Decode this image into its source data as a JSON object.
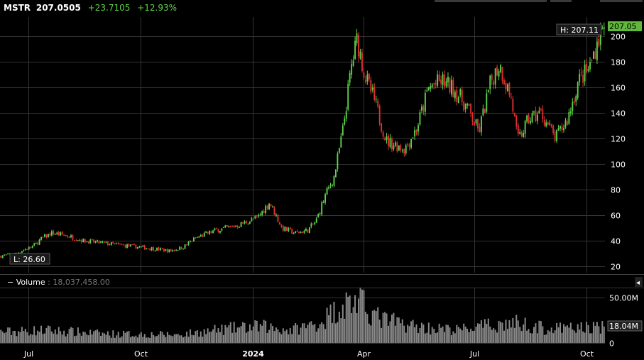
{
  "header": {
    "symbol": "MSTR",
    "price": "207.0505",
    "change": "+23.7105",
    "change_pct": "+12.93%"
  },
  "colors": {
    "up": "#5fd34a",
    "down": "#e03030",
    "volume": "#8a8a8a",
    "grid": "#333333",
    "price_tag": "#5fb83a"
  },
  "chart_data": {
    "type": "candlestick",
    "symbol": "MSTR",
    "ylim": [
      15,
      215
    ],
    "yticks": [
      20,
      40,
      60,
      80,
      100,
      120,
      140,
      160,
      180,
      200
    ],
    "x_labels": [
      "Jul",
      "Oct",
      "2024",
      "Apr",
      "Jul",
      "Oct"
    ],
    "x_label_dates": [
      "2023-07-01",
      "2023-10-01",
      "2024-01-01",
      "2024-04-01",
      "2024-07-01",
      "2024-10-01"
    ],
    "x_range": [
      "2023-06-08",
      "2024-10-16"
    ],
    "high_label": "H: 207.11",
    "high_value": 207.11,
    "low_label": "L: 26.60",
    "low_value": 26.6,
    "last_price_label": "207.05",
    "last_price": 207.05,
    "price_path": [
      [
        "2023-06-08",
        28
      ],
      [
        "2023-06-20",
        30
      ],
      [
        "2023-07-05",
        36
      ],
      [
        "2023-07-12",
        42
      ],
      [
        "2023-07-20",
        46
      ],
      [
        "2023-08-01",
        44
      ],
      [
        "2023-08-15",
        40
      ],
      [
        "2023-09-01",
        38
      ],
      [
        "2023-09-20",
        36
      ],
      [
        "2023-10-10",
        34
      ],
      [
        "2023-10-25",
        32
      ],
      [
        "2023-11-05",
        35
      ],
      [
        "2023-11-15",
        42
      ],
      [
        "2023-12-01",
        48
      ],
      [
        "2023-12-20",
        52
      ],
      [
        "2024-01-05",
        58
      ],
      [
        "2024-01-15",
        70
      ],
      [
        "2024-01-25",
        50
      ],
      [
        "2024-02-05",
        46
      ],
      [
        "2024-02-15",
        48
      ],
      [
        "2024-02-22",
        55
      ],
      [
        "2024-03-01",
        76
      ],
      [
        "2024-03-08",
        90
      ],
      [
        "2024-03-15",
        125
      ],
      [
        "2024-03-22",
        175
      ],
      [
        "2024-03-27",
        198
      ],
      [
        "2024-04-02",
        170
      ],
      [
        "2024-04-10",
        150
      ],
      [
        "2024-04-20",
        118
      ],
      [
        "2024-04-28",
        115
      ],
      [
        "2024-05-05",
        112
      ],
      [
        "2024-05-15",
        128
      ],
      [
        "2024-05-25",
        160
      ],
      [
        "2024-06-05",
        165
      ],
      [
        "2024-06-15",
        158
      ],
      [
        "2024-06-25",
        145
      ],
      [
        "2024-07-05",
        125
      ],
      [
        "2024-07-15",
        165
      ],
      [
        "2024-07-22",
        178
      ],
      [
        "2024-08-01",
        150
      ],
      [
        "2024-08-06",
        118
      ],
      [
        "2024-08-15",
        135
      ],
      [
        "2024-08-25",
        140
      ],
      [
        "2024-09-06",
        120
      ],
      [
        "2024-09-16",
        135
      ],
      [
        "2024-09-25",
        165
      ],
      [
        "2024-10-04",
        175
      ],
      [
        "2024-10-10",
        195
      ],
      [
        "2024-10-16",
        207.05
      ]
    ],
    "volume": {
      "label": "Volume",
      "last_value": "18,037,458.00",
      "ylim": [
        0,
        60
      ],
      "unit": "M",
      "yticks": [
        0,
        50
      ],
      "ytick_labels": [
        "0",
        "50.00M"
      ],
      "last_tag": "18.04M",
      "last_millions": 18.04,
      "profile": [
        [
          "2023-06-08",
          12
        ],
        [
          "2023-07-15",
          14
        ],
        [
          "2023-09-01",
          10
        ],
        [
          "2023-11-01",
          9
        ],
        [
          "2023-12-15",
          16
        ],
        [
          "2024-01-10",
          18
        ],
        [
          "2024-02-01",
          14
        ],
        [
          "2024-02-25",
          22
        ],
        [
          "2024-03-15",
          42
        ],
        [
          "2024-03-27",
          46
        ],
        [
          "2024-04-15",
          26
        ],
        [
          "2024-05-15",
          18
        ],
        [
          "2024-06-15",
          14
        ],
        [
          "2024-07-20",
          20
        ],
        [
          "2024-08-06",
          22
        ],
        [
          "2024-09-01",
          15
        ],
        [
          "2024-10-01",
          17
        ],
        [
          "2024-10-16",
          18
        ]
      ]
    }
  }
}
